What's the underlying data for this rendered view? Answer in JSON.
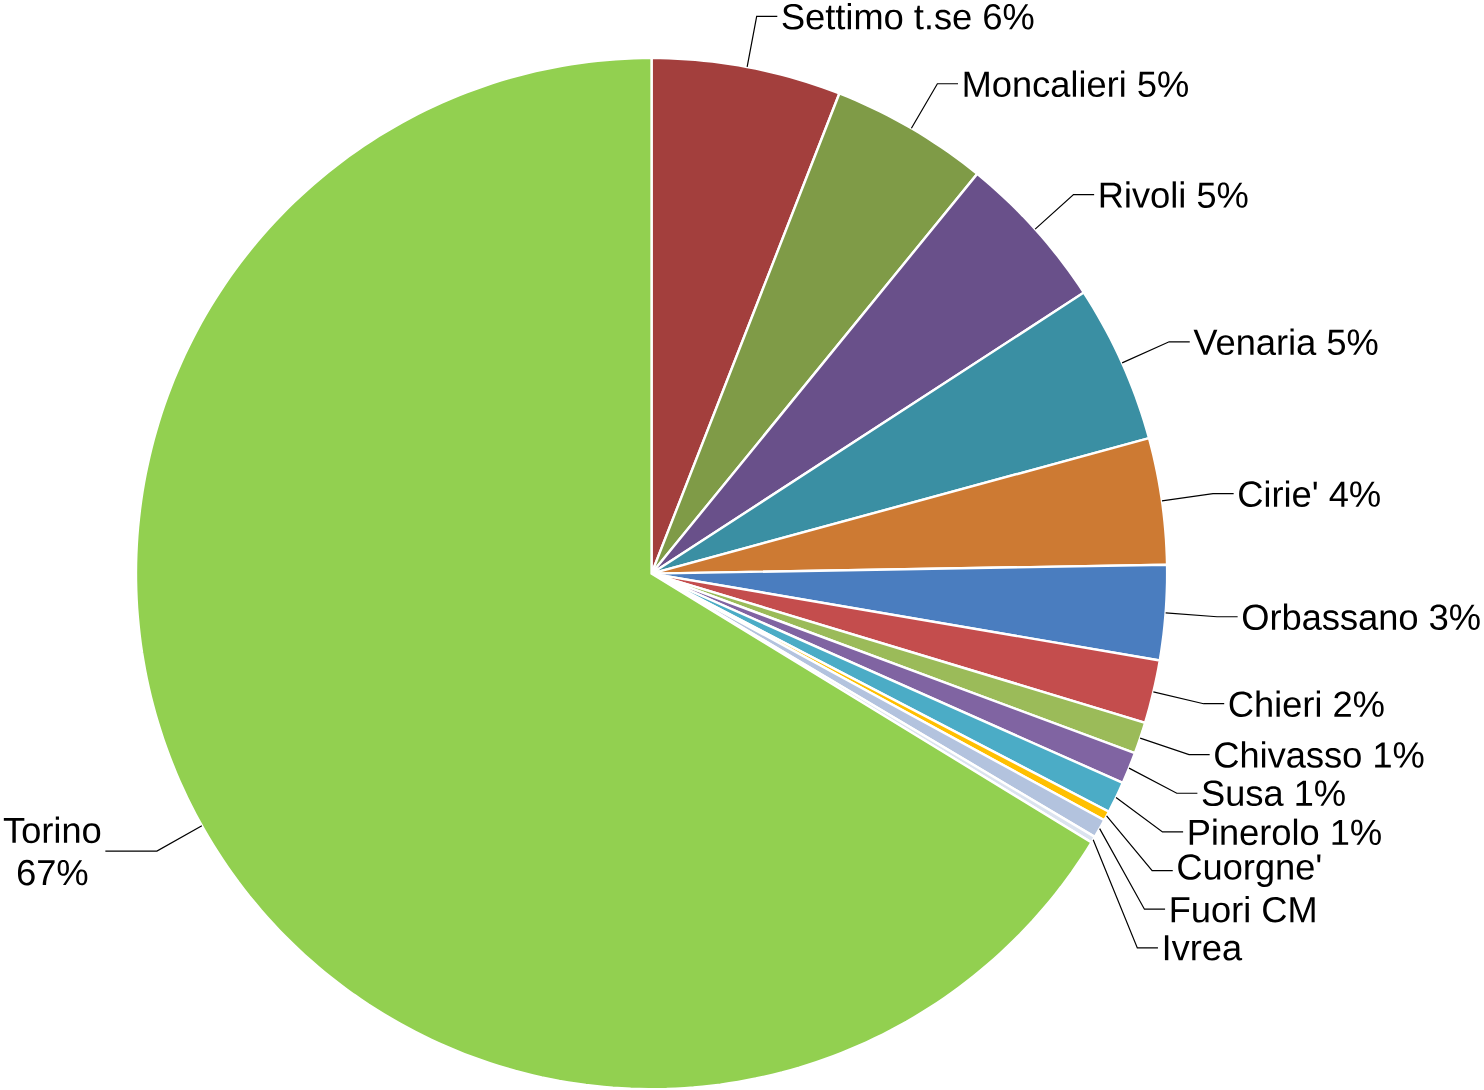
{
  "chart_data": {
    "type": "pie",
    "categories": [
      "Settimo t.se",
      "Moncalieri",
      "Rivoli",
      "Venaria",
      "Cirie'",
      "Orbassano",
      "Chieri",
      "Chivasso",
      "Susa",
      "Pinerolo",
      "Cuorgne'",
      "Fuori CM",
      "Ivrea",
      "Torino"
    ],
    "values": [
      6,
      5,
      5,
      5,
      4,
      3,
      2,
      1,
      1,
      1,
      0.3,
      0.6,
      0.2,
      67
    ],
    "value_labels": [
      "6%",
      "5%",
      "5%",
      "5%",
      "4%",
      "3%",
      "2%",
      "1%",
      "1%",
      "1%",
      null,
      null,
      null,
      "67%"
    ],
    "colors": [
      "#a33f3d",
      "#7f9b47",
      "#69508a",
      "#3a8fa3",
      "#cd7a33",
      "#4a7dbf",
      "#c44d4d",
      "#9bbb59",
      "#8064a2",
      "#4bacc6",
      "#ffc000",
      "#b3c3de",
      "#dbe3ef",
      "#92d050"
    ]
  }
}
